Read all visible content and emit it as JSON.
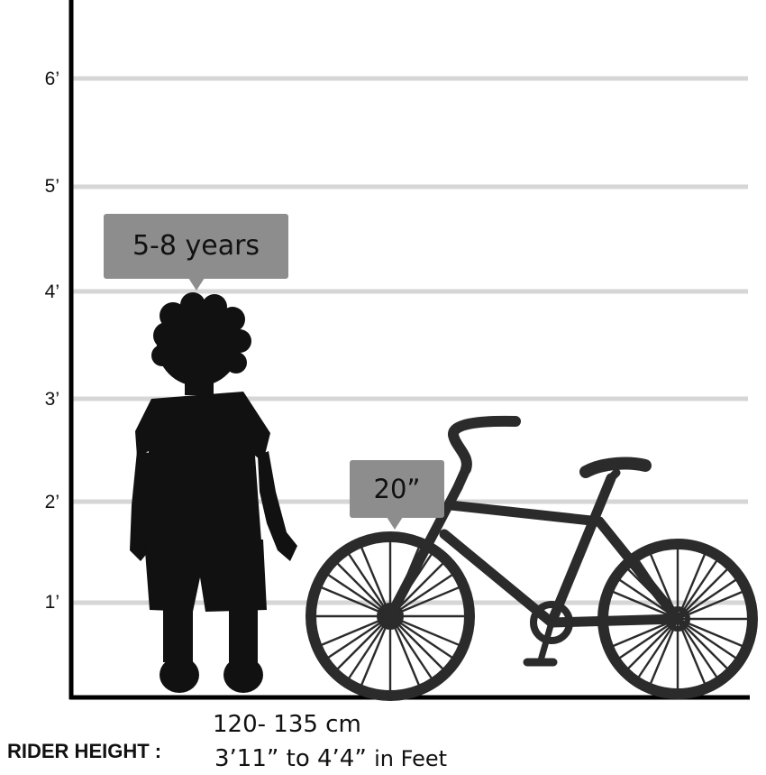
{
  "axis": {
    "ticks": [
      "1’",
      "2’",
      "3’",
      "4’",
      "5’",
      "6’"
    ]
  },
  "age_bubble": {
    "text": "5-8 years"
  },
  "wheel_bubble": {
    "text": "20”"
  },
  "rider_height": {
    "label": "RIDER HEIGHT :",
    "cm_range": "120- 135 cm",
    "feet_range": "3’11” to 4’4”",
    "feet_unit": "in Feet"
  },
  "colors": {
    "silhouette": "#111111",
    "bicycle": "#2b2b2b",
    "gridline": "#d6d6d6",
    "bubble": "#8e8d8e"
  },
  "icons": [
    "child-silhouette-icon",
    "bicycle-icon"
  ]
}
